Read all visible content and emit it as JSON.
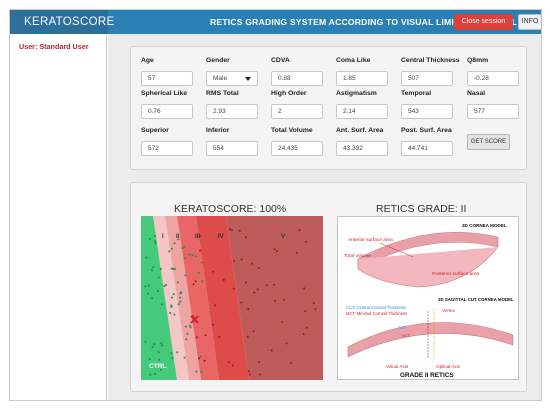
{
  "header": {
    "brand": "KERATOSCORE",
    "title": "RETICS GRADING SYSTEM ACCORDING TO VISUAL LIMITATION LEVEL",
    "close_label": "Close session",
    "info_label": "INFO"
  },
  "sidebar": {
    "user_label": "User: Standard User"
  },
  "form": {
    "fields": [
      {
        "label": "Age",
        "value": "57"
      },
      {
        "label": "Gender",
        "value": "Male"
      },
      {
        "label": "CDVA",
        "value": "0.88"
      },
      {
        "label": "Coma Like",
        "value": "1.85"
      },
      {
        "label": "Central Thickness",
        "value": "507"
      },
      {
        "label": "Q8mm",
        "value": "-0.28"
      },
      {
        "label": "Spherical Like",
        "value": "0.76"
      },
      {
        "label": "RMS Total",
        "value": "2.93"
      },
      {
        "label": "High Order",
        "value": "2"
      },
      {
        "label": "Astigmatism",
        "value": "2.14"
      },
      {
        "label": "Temporal",
        "value": "543"
      },
      {
        "label": "Nasal",
        "value": "577"
      },
      {
        "label": "Superior",
        "value": "572"
      },
      {
        "label": "Inferior",
        "value": "554"
      },
      {
        "label": "Total Volume",
        "value": "24.435"
      },
      {
        "label": "Ant. Surf. Area",
        "value": "43.392"
      },
      {
        "label": "Post. Surf. Area",
        "value": "44.741"
      }
    ],
    "get_score_label": "GET SCORE"
  },
  "results": {
    "score_title": "KERATOSCORE: 100%",
    "grade_title": "RETICS GRADE: II"
  },
  "colors": {
    "ctrl": "#45c97a",
    "grade1": "#f5c6c6",
    "grade2": "#f0a3a3",
    "grade3": "#e96666",
    "grade4": "#dd4b4b",
    "grade5": "#bd5a5a",
    "cornea": "#e9a0a6"
  },
  "chart_data": {
    "type": "scatter",
    "zones": [
      "CTRL",
      "I",
      "II",
      "III",
      "IV",
      "V"
    ],
    "zone_labels": [
      "CTRL",
      "I",
      "II",
      "III",
      "IV",
      "V"
    ],
    "marker": "patient-x"
  },
  "cornea": {
    "model_3d_label": "3D CORNEA MODEL",
    "anterior_label": "Anterior surface area",
    "total_volume_label": "Total volume",
    "posterior_label": "Posterior surface area",
    "sagittal_label": "3D SAGITTAL CUT CORNEA MODEL",
    "cct_label": "CCT: Central Corneal Thickness",
    "mct_label": "MCT: Minimal Corneal Thickness",
    "vertex_label": "Vertex",
    "visual_axis_label": "Visual Axis",
    "optical_axis_label": "Optical Axis",
    "cct_mark": "CCT",
    "mct_mark": "MCT",
    "footer": "GRADE II RETICS"
  }
}
